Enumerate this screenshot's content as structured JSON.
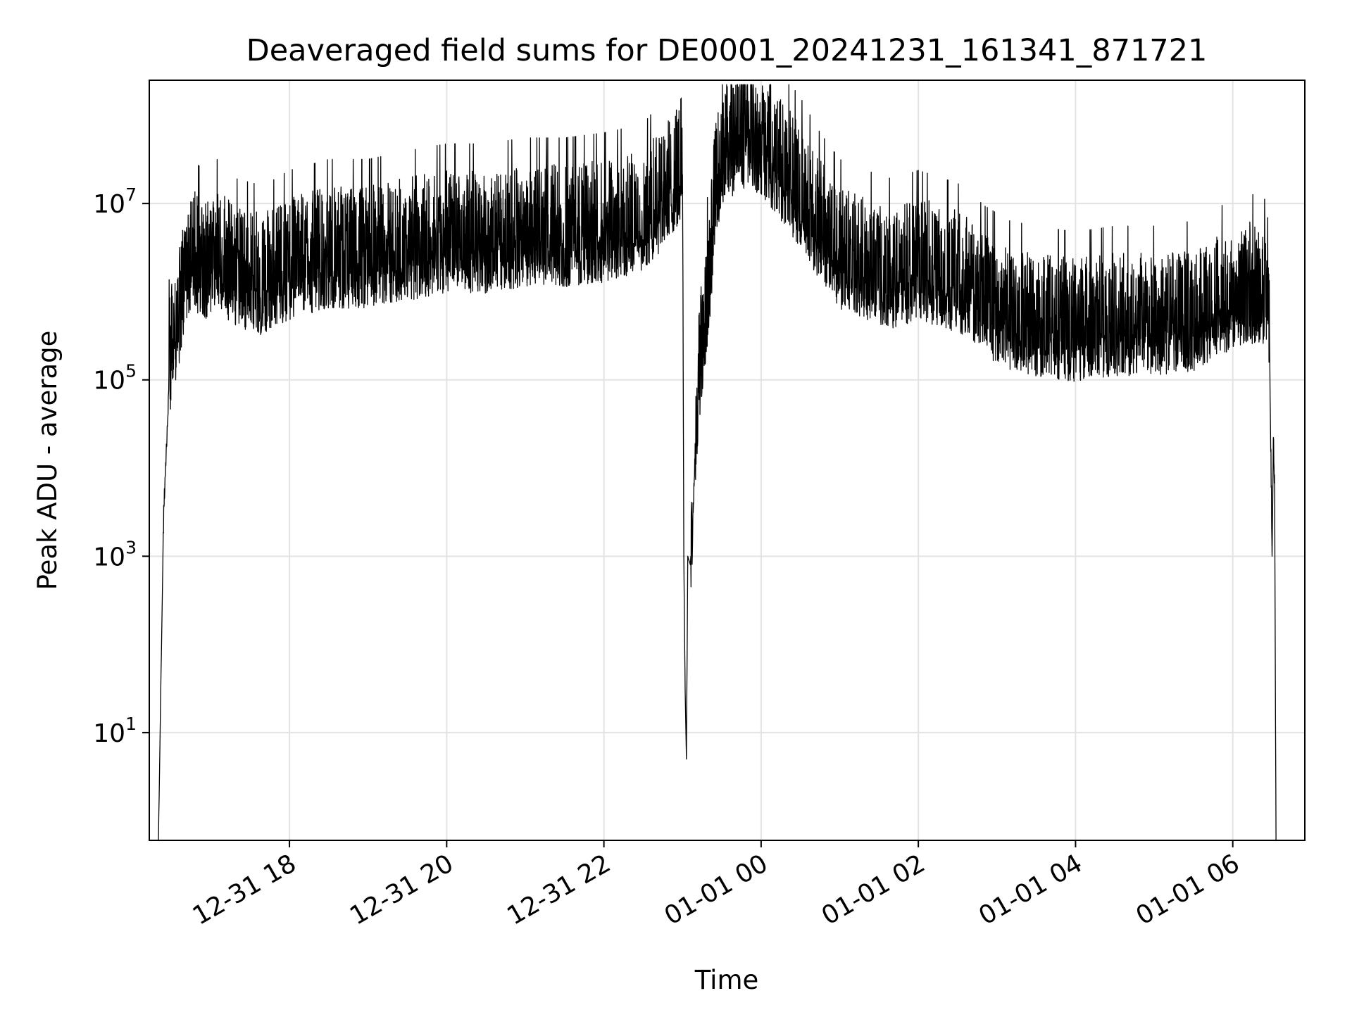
{
  "chart_data": {
    "type": "line",
    "title": "Deaveraged field sums for DE0001_20241231_161341_871721",
    "xlabel": "Time",
    "ylabel": "Peak ADU - average",
    "yscale": "log",
    "ylim": [
      0.6,
      250000000.0
    ],
    "xlim": [
      "2024-12-31 16:13",
      "2025-01-01 06:55"
    ],
    "grid": true,
    "line_color": "#000000",
    "x_ticks": [
      {
        "label": "12-31 18",
        "value": "2024-12-31 18:00"
      },
      {
        "label": "12-31 20",
        "value": "2024-12-31 20:00"
      },
      {
        "label": "12-31 22",
        "value": "2024-12-31 22:00"
      },
      {
        "label": "01-01 00",
        "value": "2025-01-01 00:00"
      },
      {
        "label": "01-01 02",
        "value": "2025-01-01 02:00"
      },
      {
        "label": "01-01 04",
        "value": "2025-01-01 04:00"
      },
      {
        "label": "01-01 06",
        "value": "2025-01-01 06:00"
      }
    ],
    "y_ticks": [
      {
        "base": "10",
        "exp": "7",
        "value": 10000000
      },
      {
        "base": "10",
        "exp": "5",
        "value": 100000
      },
      {
        "base": "10",
        "exp": "3",
        "value": 1000
      },
      {
        "base": "10",
        "exp": "1",
        "value": 10
      }
    ],
    "series": [
      {
        "x": [
          "2024-12-31 16:20",
          "2024-12-31 16:22",
          "2024-12-31 16:24",
          "2024-12-31 16:26",
          "2024-12-31 16:28",
          "2024-12-31 16:30",
          "2024-12-31 16:35",
          "2024-12-31 16:40",
          "2024-12-31 16:45",
          "2024-12-31 16:55",
          "2024-12-31 17:05",
          "2024-12-31 17:20",
          "2024-12-31 17:40",
          "2024-12-31 18:00",
          "2024-12-31 18:30",
          "2024-12-31 19:00",
          "2024-12-31 19:30",
          "2024-12-31 20:00",
          "2024-12-31 20:30",
          "2024-12-31 21:00",
          "2024-12-31 21:30",
          "2024-12-31 22:00",
          "2024-12-31 22:30",
          "2024-12-31 22:55",
          "2024-12-31 23:00",
          "2024-12-31 23:01",
          "2024-12-31 23:02",
          "2024-12-31 23:03",
          "2024-12-31 23:04",
          "2024-12-31 23:06",
          "2024-12-31 23:08",
          "2024-12-31 23:10",
          "2024-12-31 23:13",
          "2024-12-31 23:16",
          "2024-12-31 23:20",
          "2024-12-31 23:25",
          "2024-12-31 23:30",
          "2024-12-31 23:40",
          "2024-12-31 23:50",
          "2025-01-01 00:00",
          "2025-01-01 00:15",
          "2025-01-01 00:30",
          "2025-01-01 00:45",
          "2025-01-01 01:00",
          "2025-01-01 01:20",
          "2025-01-01 01:40",
          "2025-01-01 02:00",
          "2025-01-01 02:20",
          "2025-01-01 02:35",
          "2025-01-01 02:50",
          "2025-01-01 03:10",
          "2025-01-01 03:30",
          "2025-01-01 04:00",
          "2025-01-01 04:30",
          "2025-01-01 05:00",
          "2025-01-01 05:30",
          "2025-01-01 06:00",
          "2025-01-01 06:15",
          "2025-01-01 06:25",
          "2025-01-01 06:28",
          "2025-01-01 06:30",
          "2025-01-01 06:31",
          "2025-01-01 06:32",
          "2025-01-01 06:33"
        ],
        "y": [
          0.6,
          50,
          3000,
          15000,
          80000,
          200000,
          400000,
          1000000,
          2000000,
          1500000,
          2000000,
          1200000,
          1000000,
          1500000,
          2000000,
          2000000,
          2500000,
          3000000,
          3000000,
          3500000,
          3500000,
          4000000,
          5000000,
          15000000,
          25000000,
          1000,
          30,
          5,
          1000,
          800,
          3000,
          20000,
          100000,
          300000,
          1000000,
          10000000,
          30000000,
          40000000,
          45000000,
          40000000,
          20000000,
          10000000,
          4000000,
          2000000,
          1500000,
          1200000,
          1500000,
          1200000,
          1000000,
          600000,
          400000,
          350000,
          300000,
          350000,
          350000,
          400000,
          700000,
          800000,
          700000,
          300000,
          1000,
          20000,
          5000,
          0.6
        ],
        "noise": {
          "lower_decades": 0.5,
          "upper_decades": 0.9,
          "spike_max": 1.2
        }
      }
    ]
  }
}
